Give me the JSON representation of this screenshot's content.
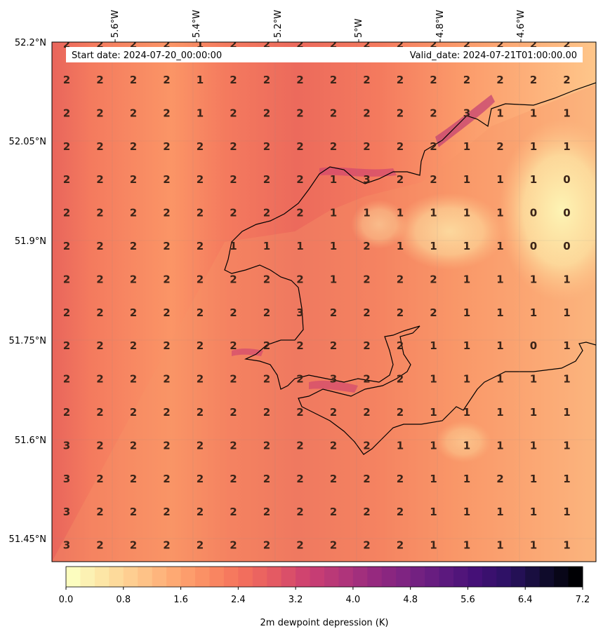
{
  "map": {
    "start_label": "Start date: 2024-07-20_00:00:00",
    "valid_label": "Valid_date: 2024-07-21T01:00:00.00",
    "lon_ticks": [
      "5.6°W",
      "5.4°W",
      "5.2°W",
      "5°W",
      "4.8°W",
      "4.6°W"
    ],
    "lat_ticks": [
      "52.2°N",
      "52.05°N",
      "51.9°N",
      "51.75°N",
      "51.6°N",
      "51.45°N"
    ],
    "grid_values": [
      [
        "2",
        "2",
        "2",
        "2",
        "1",
        "2",
        "2",
        "2",
        "2",
        "2",
        "2",
        "2",
        "2",
        "2",
        "2",
        "2"
      ],
      [
        "2",
        "2",
        "2",
        "2",
        "1",
        "2",
        "2",
        "2",
        "2",
        "2",
        "2",
        "2",
        "3",
        "1",
        "1",
        "1"
      ],
      [
        "2",
        "2",
        "2",
        "2",
        "2",
        "2",
        "2",
        "2",
        "2",
        "2",
        "2",
        "2",
        "1",
        "2",
        "1",
        "1"
      ],
      [
        "2",
        "2",
        "2",
        "2",
        "2",
        "2",
        "2",
        "2",
        "1",
        "3",
        "2",
        "2",
        "1",
        "1",
        "1",
        "0"
      ],
      [
        "2",
        "2",
        "2",
        "2",
        "2",
        "2",
        "2",
        "2",
        "1",
        "1",
        "1",
        "1",
        "1",
        "1",
        "0",
        "0"
      ],
      [
        "2",
        "2",
        "2",
        "2",
        "2",
        "1",
        "1",
        "1",
        "1",
        "2",
        "1",
        "1",
        "1",
        "1",
        "0",
        "0"
      ],
      [
        "2",
        "2",
        "2",
        "2",
        "2",
        "2",
        "2",
        "2",
        "1",
        "2",
        "2",
        "2",
        "1",
        "1",
        "1",
        "1"
      ],
      [
        "2",
        "2",
        "2",
        "2",
        "2",
        "2",
        "2",
        "3",
        "2",
        "2",
        "2",
        "2",
        "1",
        "1",
        "1",
        "1"
      ],
      [
        "2",
        "2",
        "2",
        "2",
        "2",
        "2",
        "2",
        "2",
        "2",
        "2",
        "2",
        "1",
        "1",
        "1",
        "0",
        "1"
      ],
      [
        "2",
        "2",
        "2",
        "2",
        "2",
        "2",
        "2",
        "2",
        "3",
        "2",
        "2",
        "1",
        "1",
        "1",
        "1",
        "1"
      ],
      [
        "2",
        "2",
        "2",
        "2",
        "2",
        "2",
        "2",
        "2",
        "2",
        "2",
        "2",
        "1",
        "1",
        "1",
        "1",
        "1"
      ],
      [
        "3",
        "2",
        "2",
        "2",
        "2",
        "2",
        "2",
        "2",
        "2",
        "2",
        "1",
        "1",
        "1",
        "1",
        "1",
        "1"
      ],
      [
        "3",
        "2",
        "2",
        "2",
        "2",
        "2",
        "2",
        "2",
        "2",
        "2",
        "2",
        "1",
        "1",
        "2",
        "1",
        "1"
      ],
      [
        "3",
        "2",
        "2",
        "2",
        "2",
        "2",
        "2",
        "2",
        "2",
        "2",
        "2",
        "1",
        "1",
        "1",
        "1",
        "1"
      ],
      [
        "3",
        "2",
        "2",
        "2",
        "2",
        "2",
        "2",
        "2",
        "2",
        "2",
        "2",
        "1",
        "1",
        "1",
        "1",
        "1"
      ]
    ]
  },
  "colorbar": {
    "label": "2m dewpoint depression (K)",
    "ticks": [
      "0.0",
      "0.8",
      "1.6",
      "2.4",
      "3.2",
      "4.0",
      "4.8",
      "5.6",
      "6.4",
      "7.2"
    ],
    "colors": [
      "#fcfdbf",
      "#fde2a2",
      "#fec68a",
      "#fea973",
      "#fb8d63",
      "#f4715c",
      "#e45a63",
      "#cd4071",
      "#b3367a",
      "#96297f",
      "#7b2382",
      "#601b7f",
      "#451077",
      "#2b1163",
      "#120d32",
      "#000004"
    ]
  }
}
